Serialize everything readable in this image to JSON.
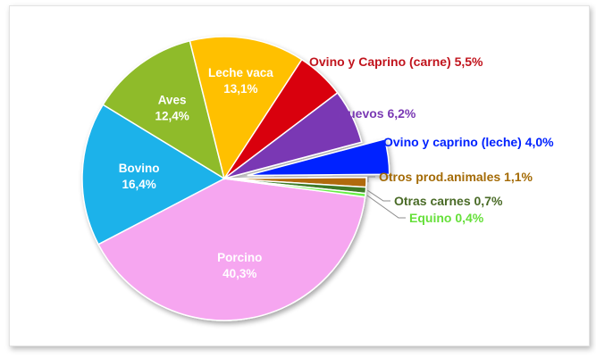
{
  "chart_data": {
    "type": "pie",
    "title": "",
    "slices": [
      {
        "label": "Porcino",
        "value": 40.3,
        "value_text": "40,3%",
        "color": "#f6a6f0",
        "label_position": "inside"
      },
      {
        "label": "Bovino",
        "value": 16.4,
        "value_text": "16,4%",
        "color": "#1ab2ea",
        "label_position": "inside"
      },
      {
        "label": "Aves",
        "value": 12.4,
        "value_text": "12,4%",
        "color": "#8fbb2a",
        "label_position": "inside"
      },
      {
        "label": "Leche vaca",
        "value": 13.1,
        "value_text": "13,1%",
        "color": "#ffc000",
        "label_position": "inside"
      },
      {
        "label": "Ovino y Caprino (carne)",
        "value": 5.5,
        "value_text": "5,5%",
        "color": "#d9000b",
        "label_position": "outside",
        "label_color": "#c1141d"
      },
      {
        "label": "Huevos",
        "value": 6.2,
        "value_text": "6,2%",
        "color": "#7a39b4",
        "label_position": "outside",
        "label_color": "#7a39b4"
      },
      {
        "label": "Ovino y caprino (leche)",
        "value": 4.0,
        "value_text": "4,0%",
        "color": "#0022ff",
        "label_position": "outside",
        "label_color": "#0022ff",
        "exploded": true
      },
      {
        "label": "Otros prod.animales",
        "value": 1.1,
        "value_text": "1,1%",
        "color": "#b06a08",
        "label_position": "outside",
        "label_color": "#a46b06"
      },
      {
        "label": "Otras carnes",
        "value": 0.7,
        "value_text": "0,7%",
        "color": "#3d7a28",
        "label_position": "outside",
        "label_color": "#4a6b27"
      },
      {
        "label": "Equino",
        "value": 0.4,
        "value_text": "0,4%",
        "color": "#66ee44",
        "label_position": "outside",
        "label_color": "#66e03a"
      }
    ]
  }
}
